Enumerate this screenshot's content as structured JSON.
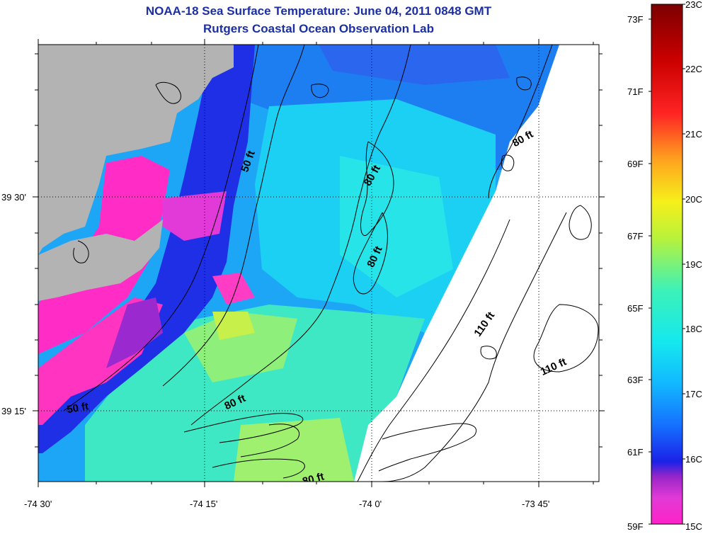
{
  "header": {
    "title": "NOAA-18 Sea Surface Temperature:  June 04, 2011 0848 GMT",
    "subtitle": "Rutgers Coastal Ocean Observation Lab"
  },
  "map": {
    "x_tick_labels": [
      "-74 30'",
      "-74 15'",
      "-74 0'",
      "-73 45'"
    ],
    "y_tick_labels": [
      "39 30'",
      "39 15'"
    ],
    "contour_labels": [
      "50 ft",
      "80 ft",
      "80 ft",
      "80 ft",
      "110 ft",
      "110 ft",
      "80 ft",
      "80 ft",
      "50 ft"
    ],
    "colors": {
      "land": "#b3b3b3",
      "no_data": "#ffffff",
      "contour": "#000000"
    }
  },
  "colorbar": {
    "celsius_labels": [
      "23C",
      "22C",
      "21C",
      "20C",
      "19C",
      "18C",
      "17C",
      "16C",
      "15C"
    ],
    "fahrenheit_labels": [
      "73F",
      "71F",
      "69F",
      "67F",
      "65F",
      "63F",
      "61F",
      "59F"
    ],
    "range_c": [
      15,
      23
    ]
  }
}
